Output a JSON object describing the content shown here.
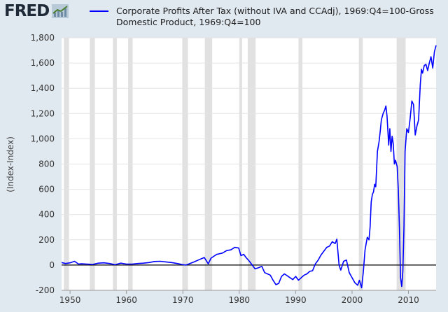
{
  "header": {
    "logo_text": "FRED",
    "logo_icon": "chart-line-icon"
  },
  "chart_data": {
    "type": "line",
    "title": "",
    "xlabel": "",
    "ylabel": "(Index-Index)",
    "xlim": [
      1948.5,
      2014.9
    ],
    "ylim": [
      -200,
      1800
    ],
    "y_ticks": [
      -200,
      0,
      200,
      400,
      600,
      800,
      1000,
      1200,
      1400,
      1600,
      1800
    ],
    "y_tick_labels": [
      "-200",
      "0",
      "200",
      "400",
      "600",
      "800",
      "1,000",
      "1,200",
      "1,400",
      "1,600",
      "1,800"
    ],
    "x_ticks": [
      1950,
      1960,
      1970,
      1980,
      1990,
      2000,
      2010
    ],
    "x_tick_labels": [
      "1950",
      "1960",
      "1970",
      "1980",
      "1990",
      "2000",
      "2010"
    ],
    "grid": "horizontal",
    "zero_line": true,
    "legend_position": "top",
    "recessions": [
      [
        1948.9,
        1949.8
      ],
      [
        1953.5,
        1954.4
      ],
      [
        1957.6,
        1958.3
      ],
      [
        1960.3,
        1961.1
      ],
      [
        1969.9,
        1970.9
      ],
      [
        1973.9,
        1975.2
      ],
      [
        1980.0,
        1980.5
      ],
      [
        1981.5,
        1982.9
      ],
      [
        1990.5,
        1991.2
      ],
      [
        2001.2,
        2001.9
      ],
      [
        2007.9,
        2009.5
      ]
    ],
    "series": [
      {
        "name": "Corporate Profits After Tax (without IVA and CCAdj), 1969:Q4=100-Gross Domestic Product, 1969:Q4=100",
        "color": "#0000ff",
        "x": [
          1948.5,
          1949.2,
          1950.0,
          1950.8,
          1951.5,
          1952.0,
          1953.0,
          1954.0,
          1955.0,
          1956.0,
          1957.0,
          1958.0,
          1959.0,
          1960.0,
          1961.0,
          1962.0,
          1963.0,
          1964.0,
          1965.0,
          1966.0,
          1967.0,
          1968.0,
          1969.0,
          1969.8,
          1970.5,
          1971.0,
          1972.0,
          1973.0,
          1973.8,
          1974.5,
          1975.0,
          1976.0,
          1977.0,
          1977.8,
          1978.5,
          1979.2,
          1979.9,
          1980.3,
          1980.8,
          1981.2,
          1981.8,
          1982.3,
          1982.8,
          1983.5,
          1984.0,
          1984.5,
          1985.0,
          1985.5,
          1986.0,
          1986.5,
          1987.0,
          1987.5,
          1988.0,
          1988.5,
          1989.0,
          1989.5,
          1990.0,
          1990.5,
          1991.0,
          1991.5,
          1992.0,
          1992.5,
          1993.0,
          1993.5,
          1994.0,
          1994.5,
          1995.0,
          1995.5,
          1996.0,
          1996.5,
          1997.0,
          1997.3,
          1997.7,
          1998.0,
          1998.5,
          1999.0,
          1999.5,
          2000.0,
          2000.5,
          2001.0,
          2001.3,
          2001.7,
          2002.0,
          2002.3,
          2002.7,
          2003.0,
          2003.2,
          2003.4,
          2003.6,
          2003.8,
          2004.0,
          2004.2,
          2004.5,
          2004.8,
          2005.0,
          2005.2,
          2005.5,
          2005.8,
          2006.0,
          2006.2,
          2006.5,
          2006.7,
          2006.9,
          2007.1,
          2007.3,
          2007.5,
          2007.7,
          2008.0,
          2008.2,
          2008.4,
          2008.6,
          2008.8,
          2009.0,
          2009.2,
          2009.4,
          2009.7,
          2010.0,
          2010.3,
          2010.6,
          2010.9,
          2011.2,
          2011.5,
          2011.8,
          2012.1,
          2012.3,
          2012.5,
          2012.8,
          2013.1,
          2013.4,
          2013.7,
          2014.0,
          2014.3,
          2014.6,
          2014.9
        ],
        "y": [
          20,
          12,
          18,
          30,
          8,
          10,
          8,
          5,
          15,
          18,
          12,
          3,
          15,
          8,
          8,
          12,
          15,
          20,
          28,
          30,
          25,
          20,
          12,
          5,
          0,
          8,
          25,
          45,
          60,
          10,
          55,
          85,
          95,
          115,
          120,
          140,
          135,
          75,
          85,
          60,
          30,
          0,
          -30,
          -20,
          -10,
          -60,
          -70,
          -80,
          -120,
          -155,
          -145,
          -90,
          -70,
          -85,
          -100,
          -115,
          -90,
          -120,
          -100,
          -80,
          -70,
          -50,
          -45,
          10,
          40,
          80,
          110,
          140,
          150,
          185,
          170,
          205,
          0,
          -40,
          30,
          40,
          -60,
          -100,
          -140,
          -160,
          -120,
          -180,
          -50,
          120,
          220,
          200,
          300,
          500,
          560,
          580,
          640,
          620,
          900,
          980,
          1060,
          1150,
          1200,
          1230,
          1260,
          1180,
          950,
          1080,
          900,
          1020,
          960,
          800,
          830,
          780,
          600,
          300,
          -100,
          -170,
          -50,
          300,
          900,
          1080,
          1050,
          1160,
          1300,
          1270,
          1030,
          1100,
          1150,
          1430,
          1550,
          1520,
          1580,
          1590,
          1540,
          1600,
          1650,
          1560,
          1690,
          1740
        ]
      }
    ]
  }
}
